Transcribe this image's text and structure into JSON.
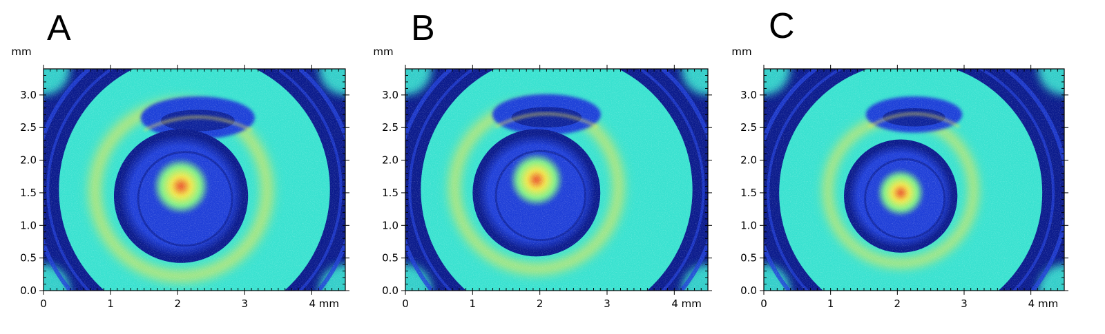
{
  "chart_data": [
    {
      "type": "heatmap",
      "panel_label": "A",
      "y_unit": "mm",
      "x_unit_label": "4 mm",
      "xlim": [
        0,
        4.5
      ],
      "ylim": [
        0,
        3.4
      ],
      "x_ticks": [
        "0",
        "1",
        "2",
        "3",
        "4 mm"
      ],
      "x_tick_values": [
        0,
        1,
        2,
        3,
        4
      ],
      "y_ticks": [
        "0.0",
        "0.5",
        "1.0",
        "1.5",
        "2.0",
        "2.5",
        "3.0"
      ],
      "y_tick_values": [
        0.0,
        0.5,
        1.0,
        1.5,
        2.0,
        2.5,
        3.0
      ],
      "colormap": "jet",
      "features": {
        "outer_ring_center": [
          2.25,
          1.55
        ],
        "outer_ring_inner_radius": 2.0,
        "inner_crater_center": [
          2.05,
          1.45
        ],
        "inner_crater_radius": 1.0,
        "hotspot_center": [
          2.05,
          1.6
        ],
        "arc_center": [
          2.3,
          2.65
        ]
      }
    },
    {
      "type": "heatmap",
      "panel_label": "B",
      "y_unit": "mm",
      "x_unit_label": "4 mm",
      "xlim": [
        0,
        4.5
      ],
      "ylim": [
        0,
        3.4
      ],
      "x_ticks": [
        "0",
        "1",
        "2",
        "3",
        "4 mm"
      ],
      "x_tick_values": [
        0,
        1,
        2,
        3,
        4
      ],
      "y_ticks": [
        "0.0",
        "0.5",
        "1.0",
        "1.5",
        "2.0",
        "2.5",
        "3.0"
      ],
      "y_tick_values": [
        0.0,
        0.5,
        1.0,
        1.5,
        2.0,
        2.5,
        3.0
      ],
      "colormap": "jet",
      "features": {
        "outer_ring_center": [
          2.25,
          1.55
        ],
        "outer_ring_inner_radius": 2.0,
        "inner_crater_center": [
          1.95,
          1.5
        ],
        "inner_crater_radius": 0.95,
        "hotspot_center": [
          1.95,
          1.7
        ],
        "arc_center": [
          2.1,
          2.7
        ]
      }
    },
    {
      "type": "heatmap",
      "panel_label": "C",
      "y_unit": "mm",
      "x_unit_label": "4 mm",
      "xlim": [
        0,
        4.5
      ],
      "ylim": [
        0,
        3.4
      ],
      "x_ticks": [
        "0",
        "1",
        "2",
        "3",
        "4 mm"
      ],
      "x_tick_values": [
        0,
        1,
        2,
        3,
        4
      ],
      "y_ticks": [
        "0.0",
        "0.5",
        "1.0",
        "1.5",
        "2.0",
        "2.5",
        "3.0"
      ],
      "y_tick_values": [
        0.0,
        0.5,
        1.0,
        1.5,
        2.0,
        2.5,
        3.0
      ],
      "colormap": "jet",
      "features": {
        "outer_ring_center": [
          2.2,
          1.5
        ],
        "outer_ring_inner_radius": 1.95,
        "inner_crater_center": [
          2.05,
          1.45
        ],
        "inner_crater_radius": 0.85,
        "hotspot_center": [
          2.05,
          1.5
        ],
        "arc_center": [
          2.25,
          2.7
        ]
      }
    }
  ],
  "colors": {
    "deep_blue": "#0a1a8c",
    "blue": "#1f3fd8",
    "cyan": "#39e2d0",
    "green": "#7cf28a",
    "yellow": "#f4e84a",
    "red": "#e8462a"
  }
}
